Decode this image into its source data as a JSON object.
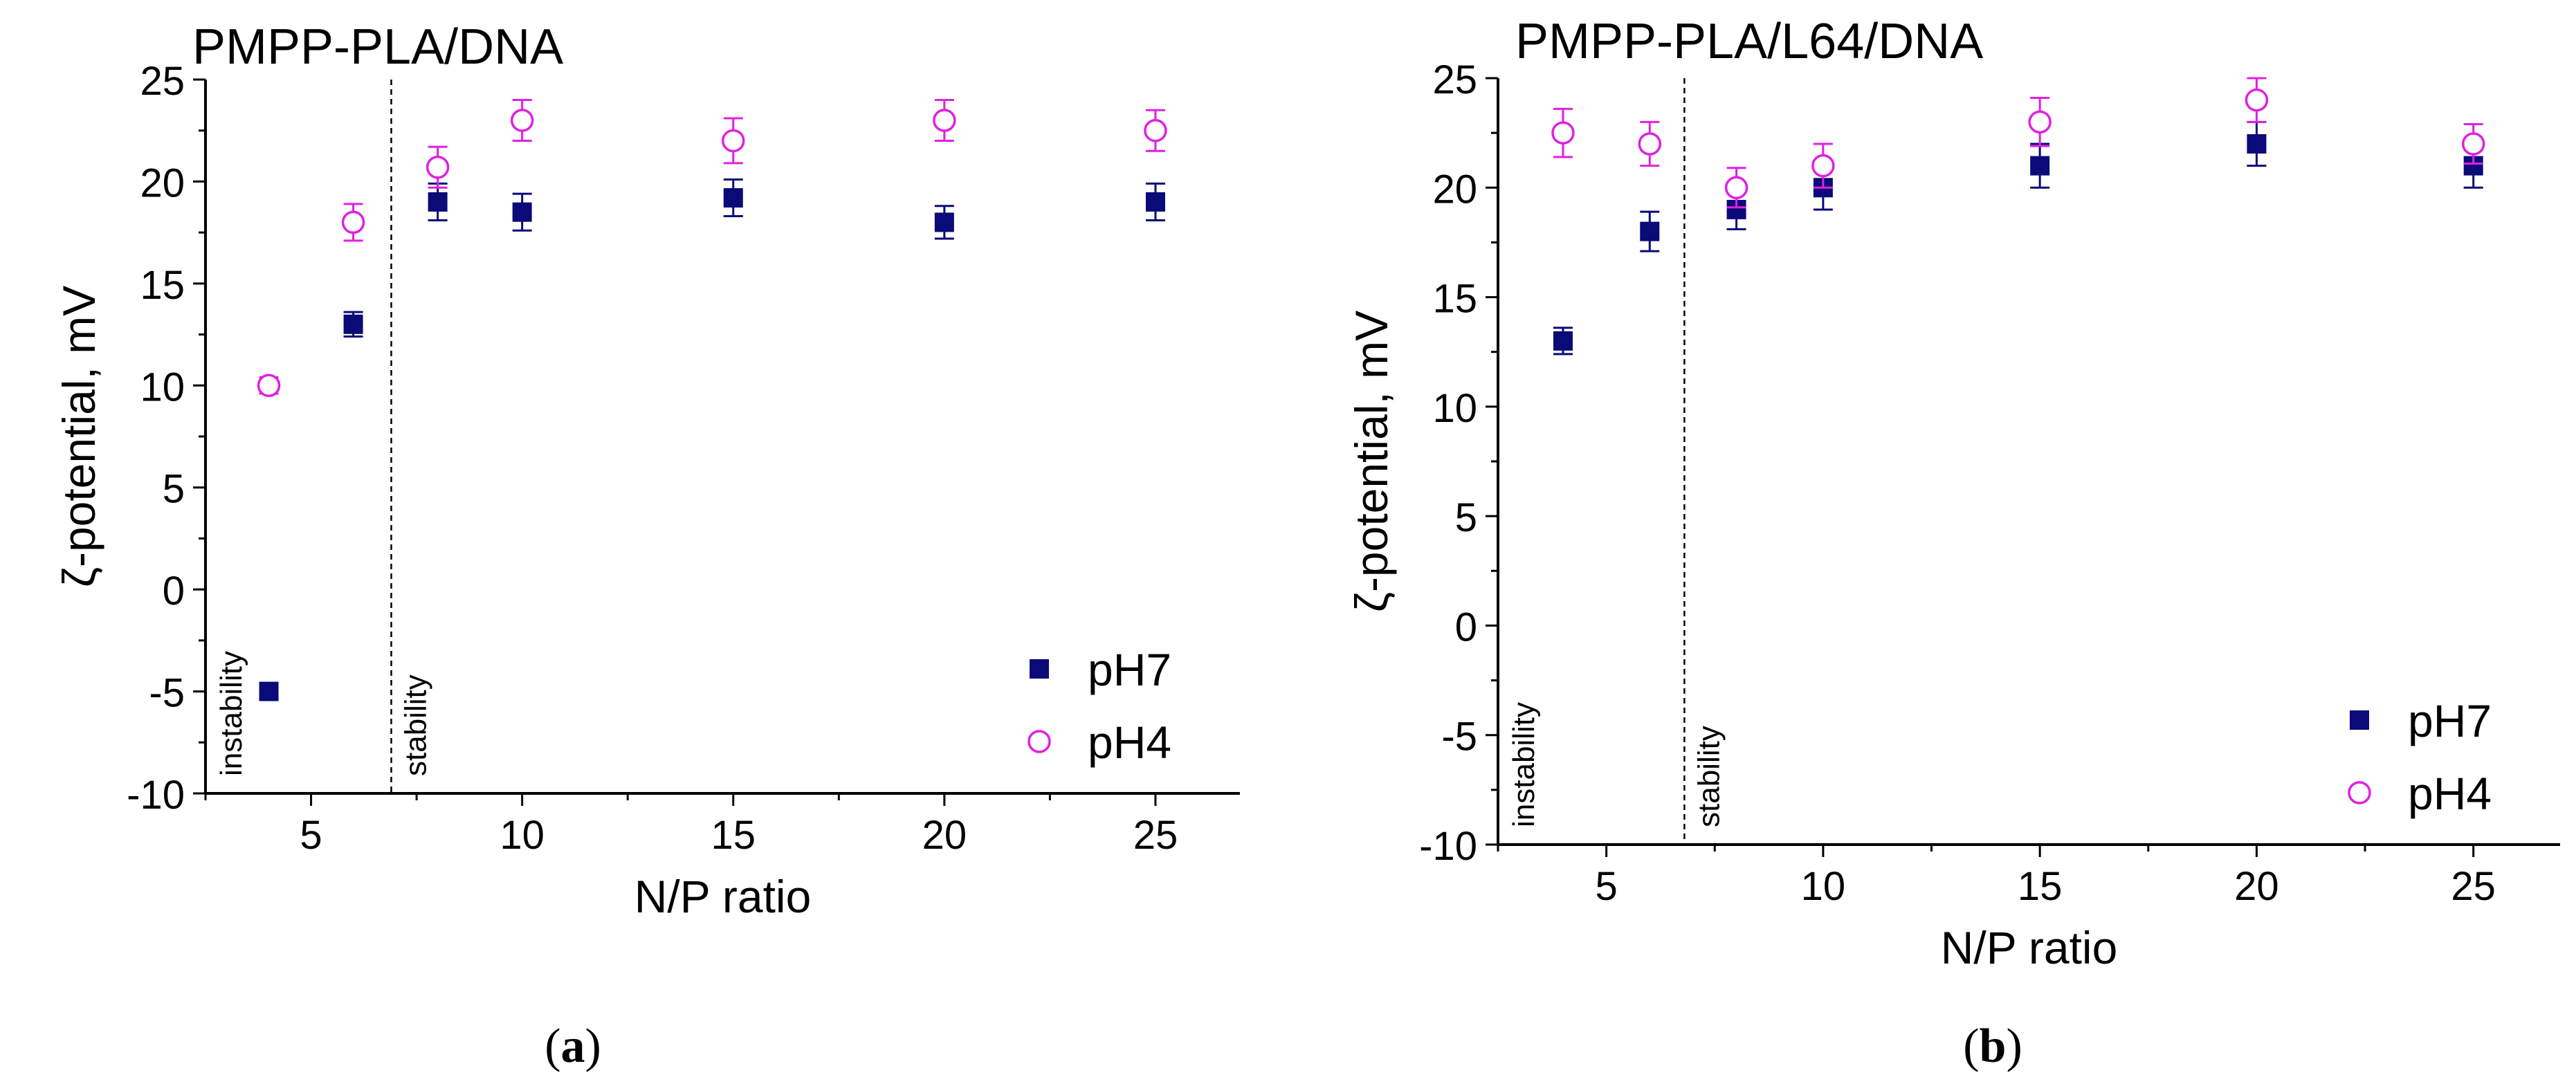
{
  "chart_data": [
    {
      "type": "scatter",
      "panel_label": "a",
      "title": "PMPP-PLA/DNA",
      "xlabel": "N/P ratio",
      "ylabel": "ζ-potential, mV",
      "xlim": [
        2.5,
        27
      ],
      "ylim": [
        -10,
        25
      ],
      "xticks": [
        5,
        10,
        15,
        20,
        25
      ],
      "yticks": [
        -10,
        -5,
        0,
        5,
        10,
        15,
        20,
        25
      ],
      "grid": false,
      "legend_position": "bottom-right",
      "divider_x": 6.9,
      "region_labels": {
        "left": "instability",
        "right": "stability"
      },
      "series": [
        {
          "name": "pH7",
          "marker": "filled-square",
          "color": "#0a0a78",
          "x": [
            4,
            6,
            8,
            10,
            15,
            20,
            25
          ],
          "y": [
            -5,
            13,
            19,
            18.5,
            19.2,
            18,
            19
          ],
          "err": [
            0,
            0.6,
            0.9,
            0.9,
            0.9,
            0.8,
            0.9
          ]
        },
        {
          "name": "pH4",
          "marker": "open-circle",
          "color": "#e020e0",
          "x": [
            4,
            6,
            8,
            10,
            15,
            20,
            25
          ],
          "y": [
            10,
            18,
            20.7,
            23,
            22,
            23,
            22.5
          ],
          "err": [
            0.4,
            0.9,
            1.0,
            1.0,
            1.1,
            1.0,
            1.0
          ]
        }
      ]
    },
    {
      "type": "scatter",
      "panel_label": "b",
      "title": "PMPP-PLA/L64/DNA",
      "xlabel": "N/P ratio",
      "ylabel": "ζ-potential, mV",
      "xlim": [
        2.5,
        27
      ],
      "ylim": [
        -10,
        25
      ],
      "xticks": [
        5,
        10,
        15,
        20,
        25
      ],
      "yticks": [
        -10,
        -5,
        0,
        5,
        10,
        15,
        20,
        25
      ],
      "grid": false,
      "legend_position": "bottom-right",
      "divider_x": 6.8,
      "region_labels": {
        "left": "instability",
        "right": "stability"
      },
      "series": [
        {
          "name": "pH7",
          "marker": "filled-square",
          "color": "#0a0a78",
          "x": [
            4,
            6,
            8,
            10,
            15,
            20,
            25
          ],
          "y": [
            13,
            18,
            19,
            20,
            21,
            22,
            21
          ],
          "err": [
            0.6,
            0.9,
            0.9,
            1.0,
            1.0,
            1.0,
            1.0
          ]
        },
        {
          "name": "pH4",
          "marker": "open-circle",
          "color": "#e020e0",
          "x": [
            4,
            6,
            8,
            10,
            15,
            20,
            25
          ],
          "y": [
            22.5,
            22,
            20,
            21,
            23,
            24,
            22
          ],
          "err": [
            1.1,
            1.0,
            0.9,
            1.0,
            1.1,
            1.0,
            0.9
          ]
        }
      ]
    }
  ]
}
